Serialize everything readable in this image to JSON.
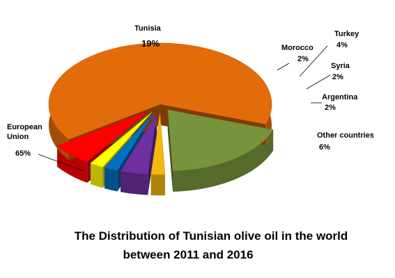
{
  "chart_data": {
    "type": "pie",
    "title_lines": [
      "The Distribution of Tunisian olive oil in the world",
      "between 2011 and 2016"
    ],
    "slices": [
      {
        "name": "European Union",
        "name_lines": [
          "European",
          "Union"
        ],
        "value": 65,
        "value_label": "65%",
        "color": "#e36c0a"
      },
      {
        "name": "Tunisia",
        "name_lines": [
          "Tunisia"
        ],
        "value": 19,
        "value_label": "19%",
        "color": "#77933c"
      },
      {
        "name": "Morocco",
        "name_lines": [
          "Morocco"
        ],
        "value": 2,
        "value_label": "2%",
        "color": "#f5b70f"
      },
      {
        "name": "Turkey",
        "name_lines": [
          "Turkey"
        ],
        "value": 4,
        "value_label": "4%",
        "color": "#7030a0"
      },
      {
        "name": "Syria",
        "name_lines": [
          "Syria"
        ],
        "value": 2,
        "value_label": "2%",
        "color": "#0070c0"
      },
      {
        "name": "Argentina",
        "name_lines": [
          "Argentina"
        ],
        "value": 2,
        "value_label": "2%",
        "color": "#ffff00"
      },
      {
        "name": "Other countries",
        "name_lines": [
          "Other countries"
        ],
        "value": 6,
        "value_label": "6%",
        "color": "#ff0000"
      }
    ]
  }
}
